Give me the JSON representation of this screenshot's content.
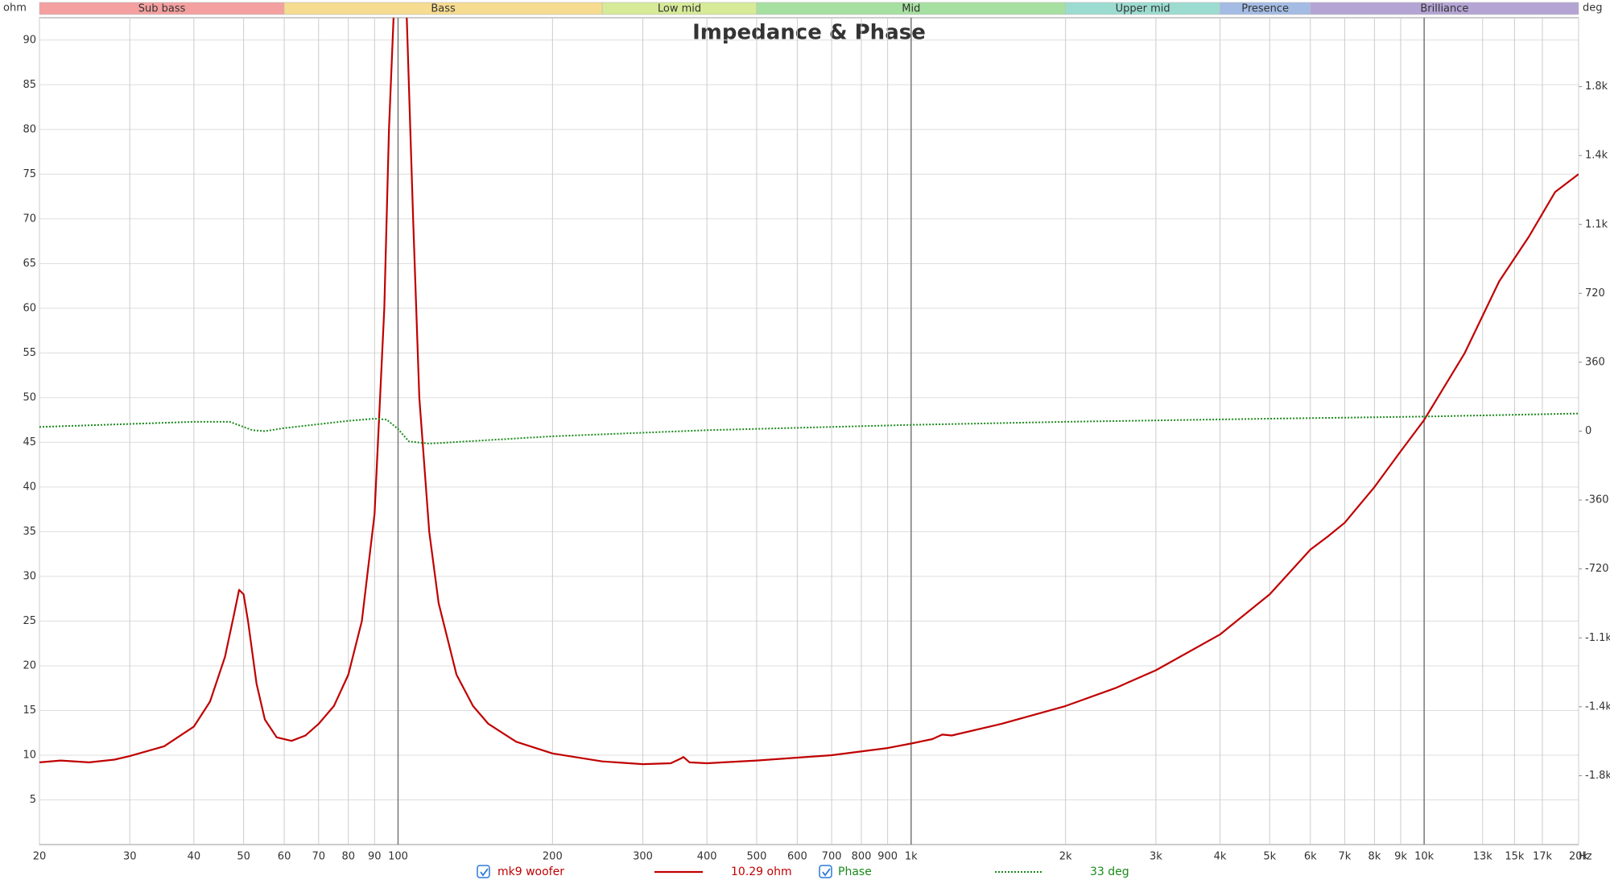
{
  "chart_data": {
    "type": "line",
    "title": "Impedance & Phase",
    "ylabel": "ohm",
    "y2label": "deg",
    "xlabel": "Hz",
    "xscale": "log",
    "xlim": [
      20,
      20000
    ],
    "xticks": [
      20,
      30,
      40,
      50,
      60,
      70,
      80,
      90,
      100,
      200,
      300,
      400,
      500,
      600,
      700,
      800,
      900,
      {
        "value": 1000,
        "label": "1k"
      },
      {
        "value": 2000,
        "label": "2k"
      },
      {
        "value": 3000,
        "label": "3k"
      },
      {
        "value": 4000,
        "label": "4k"
      },
      {
        "value": 5000,
        "label": "5k"
      },
      {
        "value": 6000,
        "label": "6k"
      },
      {
        "value": 7000,
        "label": "7k"
      },
      {
        "value": 8000,
        "label": "8k"
      },
      {
        "value": 9000,
        "label": "9k"
      },
      {
        "value": 10000,
        "label": "10k"
      },
      {
        "value": 13000,
        "label": "13k"
      },
      {
        "value": 15000,
        "label": "15k"
      },
      {
        "value": 17000,
        "label": "17k"
      },
      {
        "value": 20000,
        "label": "20k"
      }
    ],
    "ylim": [
      0,
      92.5
    ],
    "yticks": [
      5,
      10,
      15,
      20,
      25,
      30,
      35,
      40,
      45,
      50,
      55,
      60,
      65,
      70,
      75,
      80,
      85,
      90
    ],
    "y2lim": [
      -2160,
      2160
    ],
    "y2ticks": [
      {
        "value": 1800,
        "label": "1.8k"
      },
      {
        "value": 1440,
        "label": "1.4k"
      },
      {
        "value": 1080,
        "label": "1.1k"
      },
      720,
      360,
      0,
      -360,
      -720,
      {
        "value": -1080,
        "label": "-1.1k"
      },
      {
        "value": -1440,
        "label": "-1.4k"
      },
      {
        "value": -1800,
        "label": "-1.8k"
      }
    ],
    "grid": true,
    "bands": [
      {
        "name": "Sub bass",
        "start": 20,
        "end": 60,
        "color": "#f4a0a0"
      },
      {
        "name": "Bass",
        "start": 60,
        "end": 250,
        "color": "#f6dc90"
      },
      {
        "name": "Low mid",
        "start": 250,
        "end": 500,
        "color": "#d6ea98"
      },
      {
        "name": "Mid",
        "start": 500,
        "end": 2000,
        "color": "#a6e0a0"
      },
      {
        "name": "Upper mid",
        "start": 2000,
        "end": 4000,
        "color": "#9cdcd0"
      },
      {
        "name": "Presence",
        "start": 4000,
        "end": 6000,
        "color": "#a4bce4"
      },
      {
        "name": "Brilliance",
        "start": 6000,
        "end": 20000,
        "color": "#b4a4d4"
      }
    ],
    "series": [
      {
        "name": "mk9 woofer",
        "readout": "10.29 ohm",
        "color": "#c00000",
        "width": 2.2,
        "x": [
          20,
          22,
          25,
          28,
          30,
          35,
          40,
          43,
          46,
          48,
          49,
          50,
          51,
          53,
          55,
          58,
          62,
          66,
          70,
          75,
          80,
          85,
          90,
          94,
          96,
          98,
          101,
          104,
          107,
          110,
          115,
          120,
          130,
          140,
          150,
          170,
          200,
          250,
          300,
          340,
          355,
          360,
          370,
          400,
          500,
          700,
          900,
          1000,
          1100,
          1150,
          1200,
          1500,
          2000,
          2500,
          3000,
          4000,
          5000,
          6000,
          6500,
          7000,
          8000,
          9000,
          10000,
          12000,
          14000,
          16000,
          18000,
          20000
        ],
        "values": [
          9.2,
          9.4,
          9.2,
          9.5,
          9.9,
          11,
          13.2,
          16,
          21,
          26,
          28.5,
          28,
          25,
          18,
          14,
          12,
          11.6,
          12.2,
          13.5,
          15.5,
          19,
          25,
          37,
          60,
          80,
          92.5,
          120,
          92.5,
          70,
          50,
          35,
          27,
          19,
          15.5,
          13.5,
          11.5,
          10.2,
          9.3,
          9.0,
          9.1,
          9.6,
          9.8,
          9.2,
          9.1,
          9.4,
          10,
          10.8,
          11.3,
          11.8,
          12.3,
          12.2,
          13.5,
          15.5,
          17.5,
          19.5,
          23.5,
          28,
          33,
          34.5,
          36,
          40,
          44,
          47.5,
          55,
          63,
          68,
          73,
          75
        ]
      },
      {
        "name": "Phase",
        "readout": "33 deg",
        "color": "#1a8a1a",
        "width": 2,
        "dash": "dotted",
        "axis": "y2",
        "x": [
          20,
          40,
          47,
          52,
          55,
          60,
          80,
          90,
          95,
          100,
          105,
          115,
          200,
          400,
          1000,
          2000,
          5000,
          10000,
          20000
        ],
        "values": [
          22,
          49,
          49,
          5,
          0,
          16,
          54,
          65,
          60,
          11,
          -54,
          -65,
          -27,
          5,
          33,
          49,
          65,
          76,
          92
        ]
      }
    ]
  }
}
